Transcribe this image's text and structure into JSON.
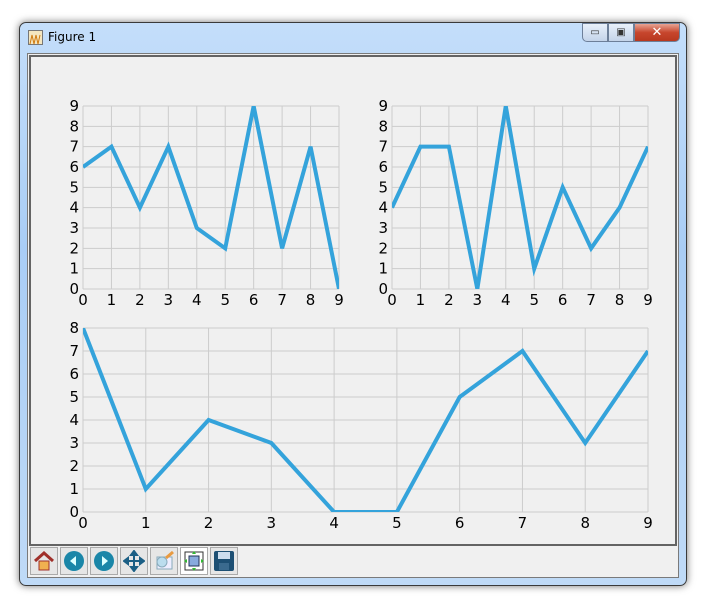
{
  "window": {
    "title": "Figure 1",
    "controls": [
      "minimize",
      "maximize",
      "close"
    ]
  },
  "toolbar": {
    "buttons": [
      {
        "name": "home",
        "icon": "home-icon"
      },
      {
        "name": "back",
        "icon": "arrow-left-icon"
      },
      {
        "name": "forward",
        "icon": "arrow-right-icon"
      },
      {
        "name": "pan",
        "icon": "move-icon"
      },
      {
        "name": "zoom",
        "icon": "zoom-rect-icon"
      },
      {
        "name": "subplots",
        "icon": "configure-subplots-icon"
      },
      {
        "name": "save",
        "icon": "save-icon"
      }
    ]
  },
  "colors": {
    "line": "#34a3db",
    "grid": "#cccccc",
    "background": "#f0f0f0"
  },
  "chart_data": [
    {
      "type": "line",
      "x": [
        0,
        1,
        2,
        3,
        4,
        5,
        6,
        7,
        8,
        9
      ],
      "values": [
        6,
        7,
        4,
        7,
        3,
        2,
        9,
        2,
        7,
        0
      ],
      "xlim": [
        0,
        9
      ],
      "ylim": [
        0,
        9
      ],
      "xticks": [
        "0",
        "1",
        "2",
        "3",
        "4",
        "5",
        "6",
        "7",
        "8",
        "9"
      ],
      "yticks": [
        "0",
        "1",
        "2",
        "3",
        "4",
        "5",
        "6",
        "7",
        "8",
        "9"
      ],
      "grid": true
    },
    {
      "type": "line",
      "x": [
        0,
        1,
        2,
        3,
        4,
        5,
        6,
        7,
        8,
        9
      ],
      "values": [
        4,
        7,
        7,
        0,
        9,
        1,
        5,
        2,
        4,
        7
      ],
      "xlim": [
        0,
        9
      ],
      "ylim": [
        0,
        9
      ],
      "xticks": [
        "0",
        "1",
        "2",
        "3",
        "4",
        "5",
        "6",
        "7",
        "8",
        "9"
      ],
      "yticks": [
        "0",
        "1",
        "2",
        "3",
        "4",
        "5",
        "6",
        "7",
        "8",
        "9"
      ],
      "grid": true
    },
    {
      "type": "line",
      "x": [
        0,
        1,
        2,
        3,
        4,
        5,
        6,
        7,
        8,
        9
      ],
      "values": [
        8,
        1,
        4,
        3,
        0,
        0,
        5,
        7,
        3,
        7
      ],
      "xlim": [
        0,
        9
      ],
      "ylim": [
        0,
        8
      ],
      "xticks": [
        "0",
        "1",
        "2",
        "3",
        "4",
        "5",
        "6",
        "7",
        "8",
        "9"
      ],
      "yticks": [
        "0",
        "1",
        "2",
        "3",
        "4",
        "5",
        "6",
        "7",
        "8"
      ],
      "grid": true
    }
  ]
}
